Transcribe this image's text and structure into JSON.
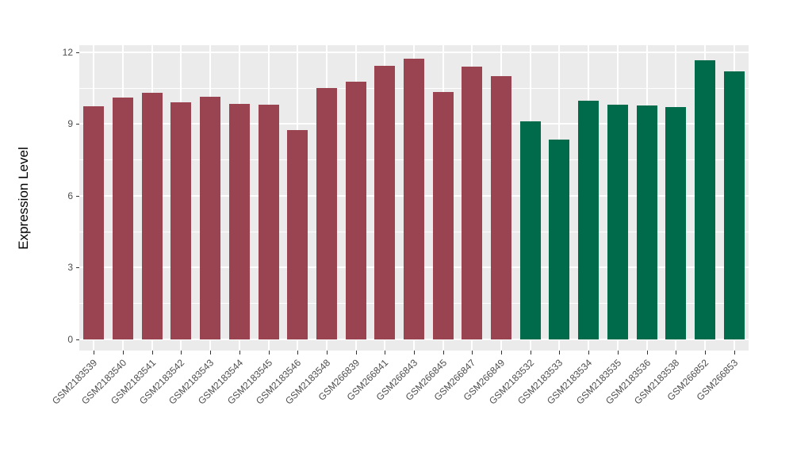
{
  "chart_data": {
    "type": "bar",
    "title": "",
    "xlabel": "",
    "ylabel": "Expression Level",
    "ylim": [
      0,
      12
    ],
    "yticks": [
      0,
      3,
      6,
      9,
      12
    ],
    "minor_gridlines": [
      1.5,
      4.5,
      7.5,
      10.5
    ],
    "grid": true,
    "legend_position": "none",
    "categories": [
      "GSM2183539",
      "GSM2183540",
      "GSM2183541",
      "GSM2183542",
      "GSM2183543",
      "GSM2183544",
      "GSM2183545",
      "GSM2183546",
      "GSM2183548",
      "GSM266839",
      "GSM266841",
      "GSM266843",
      "GSM266845",
      "GSM266847",
      "GSM266849",
      "GSM2183532",
      "GSM2183533",
      "GSM2183534",
      "GSM2183535",
      "GSM2183536",
      "GSM2183538",
      "GSM266852",
      "GSM266853"
    ],
    "values": [
      9.75,
      10.1,
      10.3,
      9.9,
      10.15,
      9.85,
      9.8,
      8.75,
      10.5,
      10.78,
      11.45,
      11.72,
      10.35,
      11.4,
      11.0,
      9.1,
      8.35,
      9.98,
      9.82,
      9.78,
      9.7,
      11.68,
      11.2
    ],
    "group": [
      0,
      0,
      0,
      0,
      0,
      0,
      0,
      0,
      0,
      0,
      0,
      0,
      0,
      0,
      0,
      1,
      1,
      1,
      1,
      1,
      1,
      1,
      1
    ],
    "group_colors": [
      "#9B4451",
      "#006B4B"
    ]
  },
  "colors": {
    "figure_background": "#FFFFFF",
    "panel_background": "#EBEBEB",
    "gridline": "#FFFFFF",
    "tick_mark": "#333333",
    "tick_label": "#4D4D4D",
    "axis_title": "#000000"
  }
}
